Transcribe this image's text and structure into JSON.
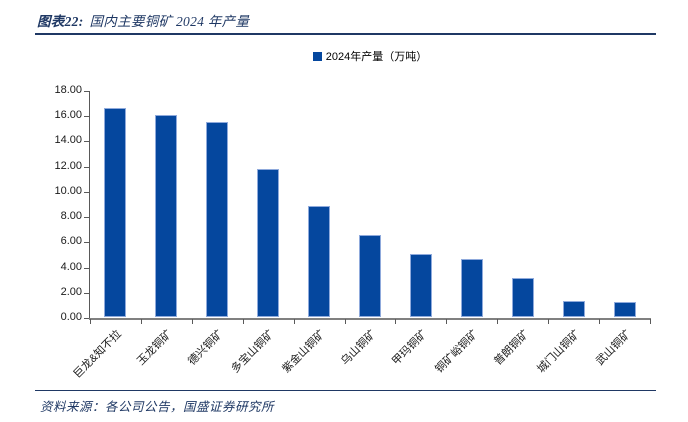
{
  "header": {
    "label": "图表22:",
    "title": "国内主要铜矿 2024 年产量"
  },
  "footer": {
    "source": "资料来源：各公司公告，国盛证券研究所"
  },
  "colors": {
    "accent_navy": "#1f3864",
    "bar_fill": "#05479e",
    "bar_border": "#8faadc",
    "axis_line": "#595959",
    "tick_text": "#1a1a1a"
  },
  "chart_data": {
    "type": "bar",
    "title": "国内主要铜矿2024年产量",
    "legend": "2024年产量（万吨）",
    "legend_position": "top-center",
    "categories": [
      "巨龙&知不拉",
      "玉龙铜矿",
      "德兴铜矿",
      "多宝山铜矿",
      "紫金山铜矿",
      "乌山铜矿",
      "甲玛铜矿",
      "铜矿峪铜矿",
      "普朗铜矿",
      "城门山铜矿",
      "武山铜矿"
    ],
    "values": [
      16.6,
      16.0,
      15.5,
      11.7,
      8.8,
      6.5,
      5.0,
      4.6,
      3.1,
      1.3,
      1.2
    ],
    "xlabel": "",
    "ylabel": "",
    "ylim": [
      0,
      18
    ],
    "ytick_step": 2,
    "ytick_labels": [
      "0.00",
      "2.00",
      "4.00",
      "6.00",
      "8.00",
      "10.00",
      "12.00",
      "14.00",
      "16.00",
      "18.00"
    ],
    "grid": false
  }
}
